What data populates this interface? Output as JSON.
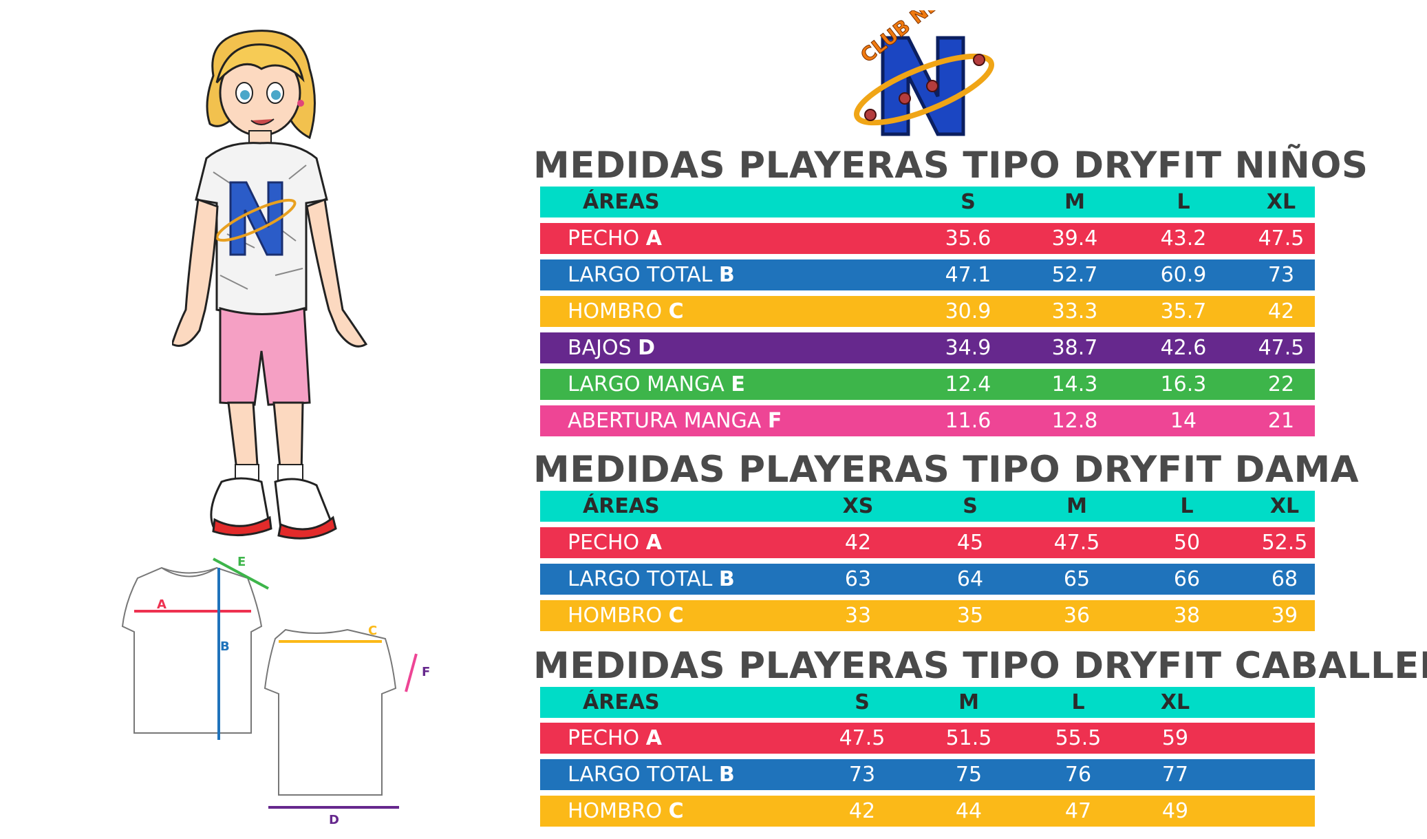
{
  "logo": {
    "text": "CLUB NET",
    "letter": "N"
  },
  "tables": {
    "ninos": {
      "title": "MEDIDAS PLAYERAS TIPO DRYFIT NIÑOS",
      "header": {
        "label": "ÁREAS",
        "sizes": [
          "S",
          "M",
          "L",
          "XL"
        ]
      },
      "rows": [
        {
          "name": "PECHO",
          "letter": "A",
          "values": [
            "35.6",
            "39.4",
            "43.2",
            "47.5"
          ]
        },
        {
          "name": "LARGO TOTAL",
          "letter": "B",
          "values": [
            "47.1",
            "52.7",
            "60.9",
            "73"
          ]
        },
        {
          "name": "HOMBRO",
          "letter": "C",
          "values": [
            "30.9",
            "33.3",
            "35.7",
            "42"
          ]
        },
        {
          "name": "BAJOS",
          "letter": "D",
          "values": [
            "34.9",
            "38.7",
            "42.6",
            "47.5"
          ]
        },
        {
          "name": "LARGO MANGA",
          "letter": "E",
          "values": [
            "12.4",
            "14.3",
            "16.3",
            "22"
          ]
        },
        {
          "name": "ABERTURA MANGA",
          "letter": "F",
          "values": [
            "11.6",
            "12.8",
            "14",
            "21"
          ]
        }
      ]
    },
    "dama": {
      "title": "MEDIDAS PLAYERAS TIPO DRYFIT DAMA",
      "header": {
        "label": "ÁREAS",
        "sizes": [
          "XS",
          "S",
          "M",
          "L",
          "XL"
        ]
      },
      "rows": [
        {
          "name": "PECHO",
          "letter": "A",
          "values": [
            "42",
            "45",
            "47.5",
            "50",
            "52.5"
          ]
        },
        {
          "name": "LARGO TOTAL",
          "letter": "B",
          "values": [
            "63",
            "64",
            "65",
            "66",
            "68"
          ]
        },
        {
          "name": "HOMBRO",
          "letter": "C",
          "values": [
            "33",
            "35",
            "36",
            "38",
            "39"
          ]
        }
      ]
    },
    "caballero": {
      "title": "MEDIDAS PLAYERAS TIPO DRYFIT CABALLERO",
      "header": {
        "label": "ÁREAS",
        "sizes": [
          "S",
          "M",
          "L",
          "XL"
        ]
      },
      "rows": [
        {
          "name": "PECHO",
          "letter": "A",
          "values": [
            "47.5",
            "51.5",
            "55.5",
            "59"
          ]
        },
        {
          "name": "LARGO TOTAL",
          "letter": "B",
          "values": [
            "73",
            "75",
            "76",
            "77"
          ]
        },
        {
          "name": "HOMBRO",
          "letter": "C",
          "values": [
            "42",
            "44",
            "47",
            "49"
          ]
        }
      ]
    }
  },
  "diagram": {
    "letters": [
      "A",
      "B",
      "C",
      "D",
      "E",
      "F"
    ]
  },
  "colors": {
    "teal": "#00dcc7",
    "red": "#ee3150",
    "blue": "#1f73bb",
    "yellow": "#fbb918",
    "purple": "#66288d",
    "green": "#3db54a",
    "pink": "#ee4595",
    "title": "#4a4a4a"
  }
}
